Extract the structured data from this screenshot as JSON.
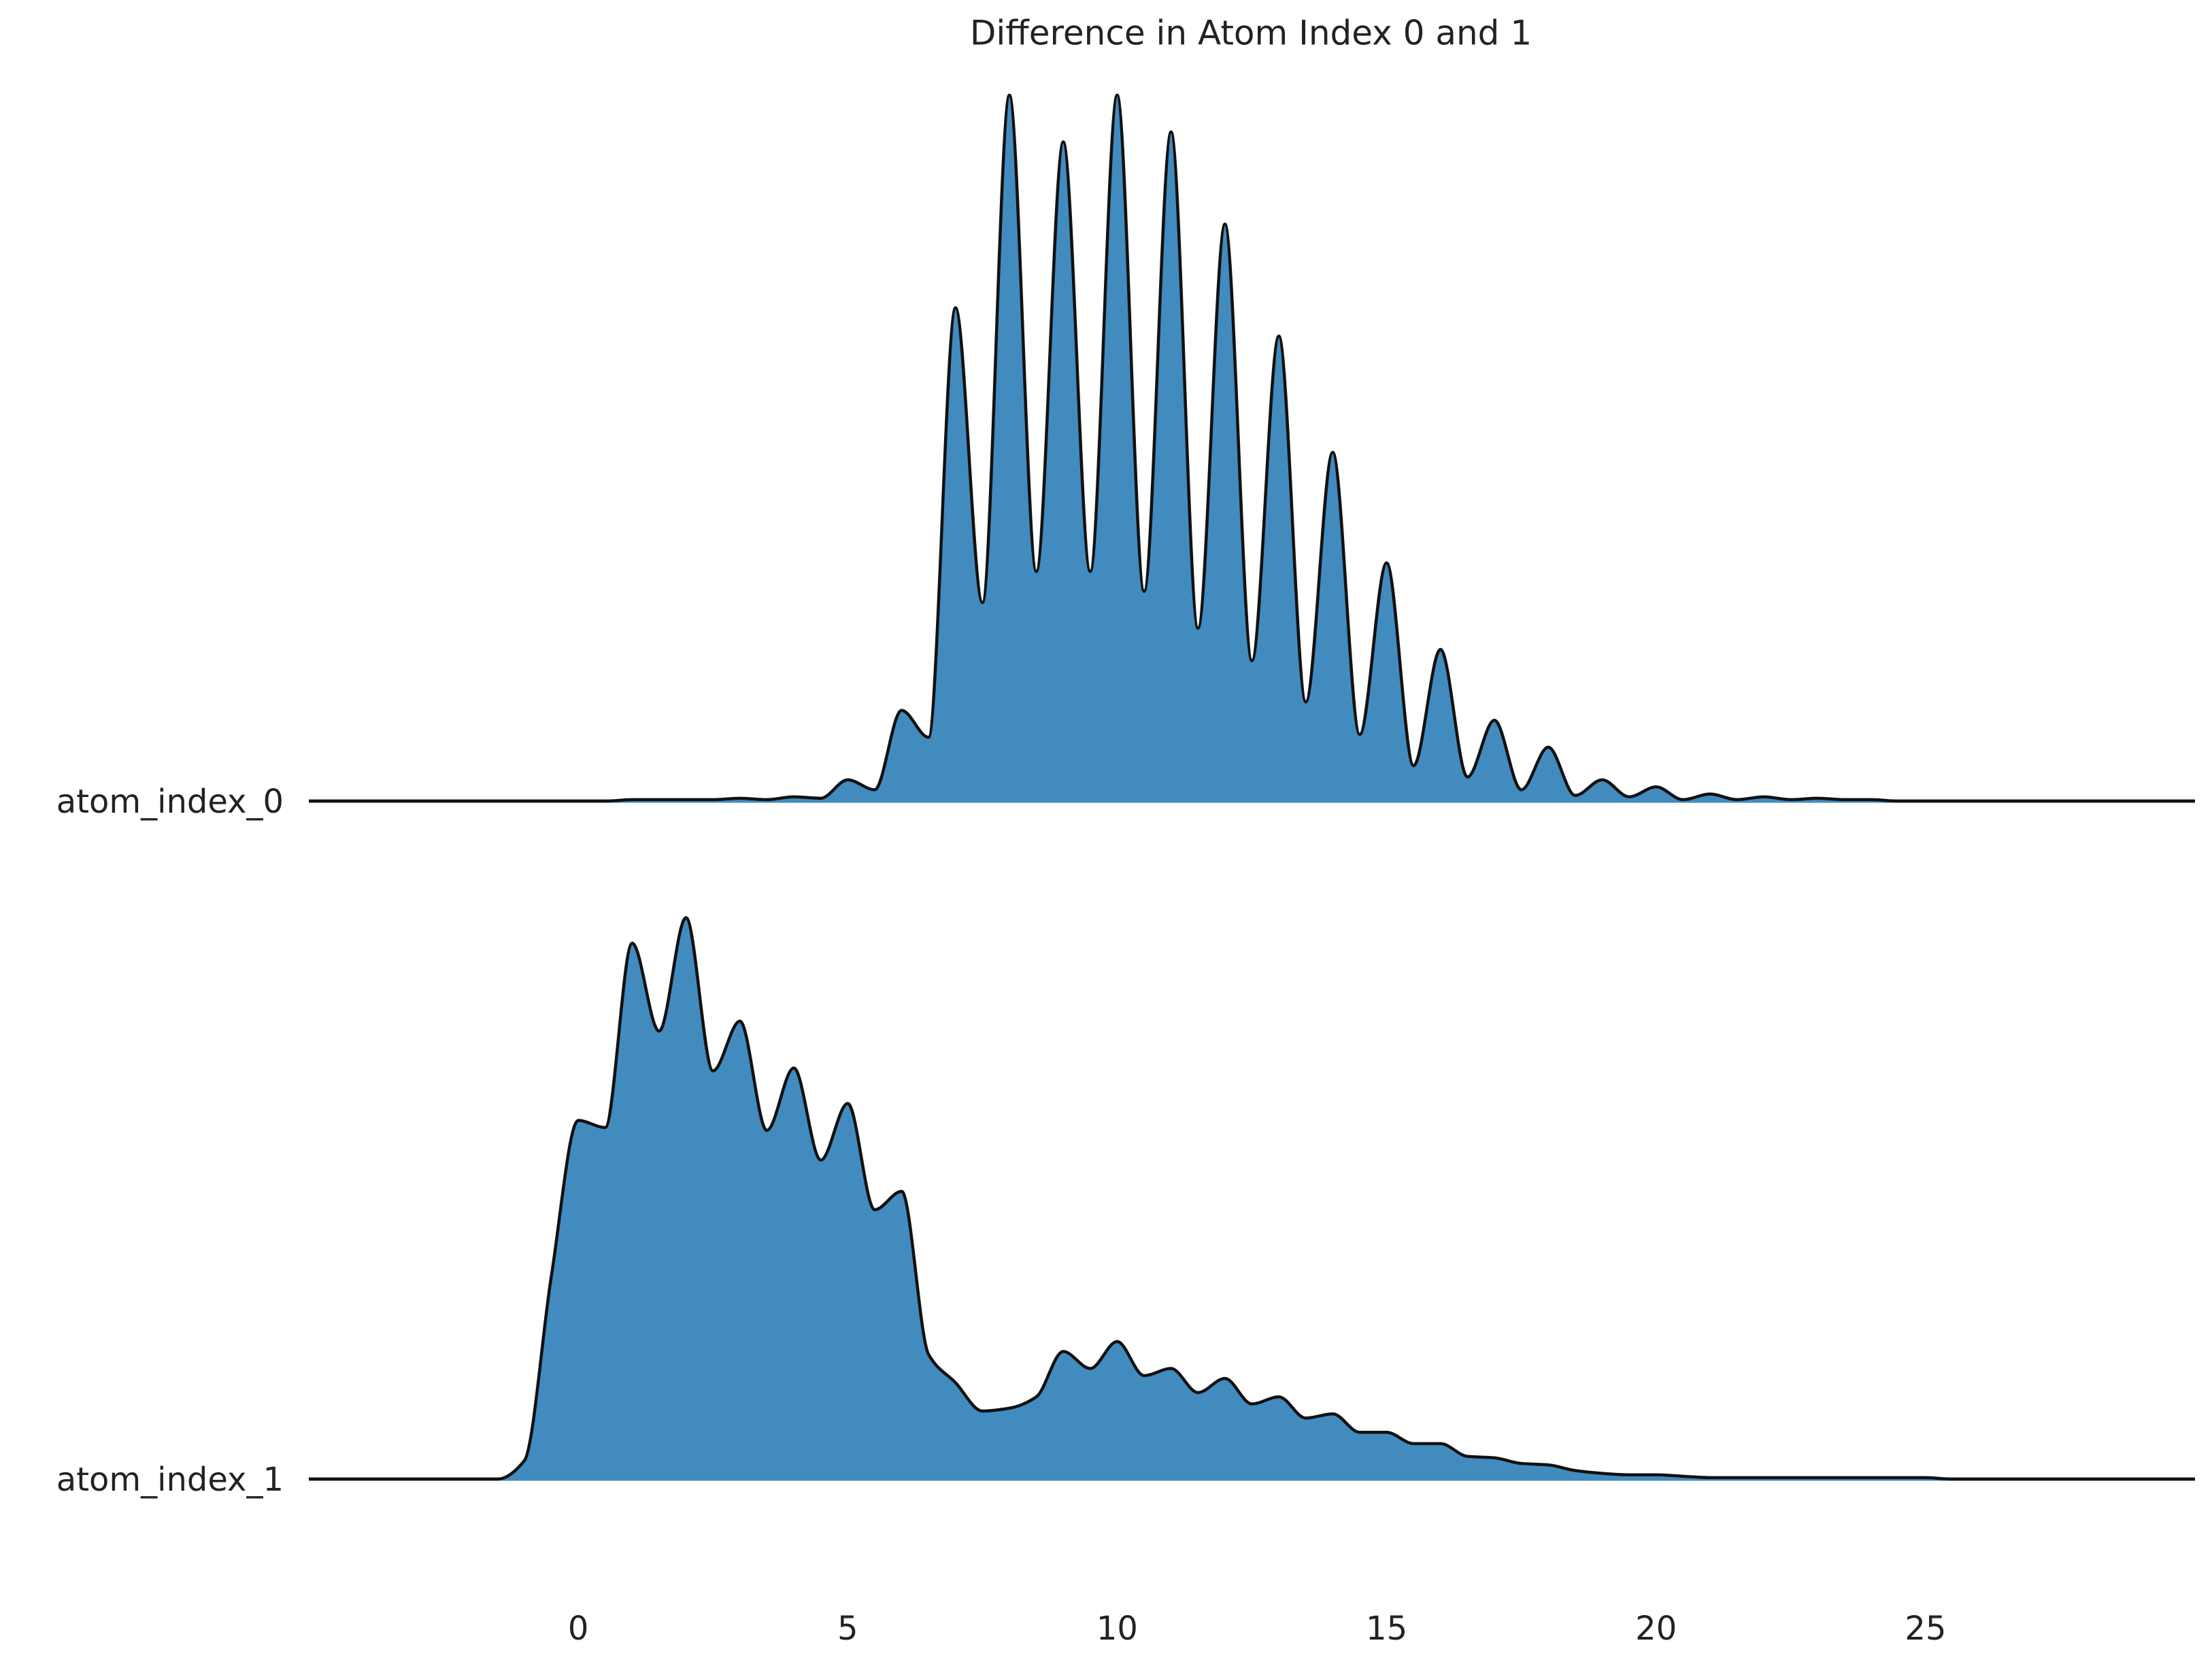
{
  "chart_data": {
    "type": "ridgeline",
    "title": "Difference in Atom Index 0 and 1",
    "x": [
      -5,
      -4.5,
      -4,
      -3.5,
      -3,
      -2.5,
      -2,
      -1.5,
      -1,
      -0.5,
      0,
      0.5,
      1,
      1.5,
      2,
      2.5,
      3,
      3.5,
      4,
      4.5,
      5,
      5.5,
      6,
      6.5,
      7,
      7.5,
      8,
      8.5,
      9,
      9.5,
      10,
      10.5,
      11,
      11.5,
      12,
      12.5,
      13,
      13.5,
      14,
      14.5,
      15,
      15.5,
      16,
      16.5,
      17,
      17.5,
      18,
      18.5,
      19,
      19.5,
      20,
      20.5,
      21,
      21.5,
      22,
      22.5,
      23,
      23.5,
      24,
      24.5,
      25,
      25.5,
      26,
      26.5,
      27,
      27.5,
      28,
      28.5,
      29,
      29.5,
      30
    ],
    "series": [
      {
        "name": "atom_index_0",
        "color": "#428bbf",
        "values": [
          0,
          0,
          0,
          0,
          0,
          0,
          0,
          0,
          0,
          0,
          0,
          0,
          0.0005,
          0.0005,
          0.0005,
          0.0005,
          0.001,
          0.0005,
          0.0015,
          0.001,
          0.0075,
          0.004,
          0.032,
          0.0225,
          0.174,
          0.07,
          0.249,
          0.081,
          0.2325,
          0.081,
          0.249,
          0.074,
          0.236,
          0.061,
          0.2035,
          0.0495,
          0.164,
          0.035,
          0.123,
          0.0235,
          0.084,
          0.0125,
          0.0535,
          0.0085,
          0.0285,
          0.004,
          0.019,
          0.002,
          0.0075,
          0.0015,
          0.005,
          0.0005,
          0.0025,
          0.0005,
          0.0015,
          0.0005,
          0.001,
          0.0005,
          0.0005,
          0,
          0,
          0,
          0,
          0,
          0,
          0,
          0,
          0,
          0,
          0,
          0
        ]
      },
      {
        "name": "atom_index_1",
        "color": "#428bbf",
        "values": [
          0,
          0,
          0,
          0,
          0,
          0,
          0,
          0,
          0.0065,
          0.0715,
          0.1265,
          0.124,
          0.189,
          0.158,
          0.198,
          0.144,
          0.1615,
          0.123,
          0.145,
          0.1125,
          0.1325,
          0.095,
          0.1015,
          0.044,
          0.034,
          0.024,
          0.025,
          0.029,
          0.045,
          0.039,
          0.0485,
          0.0365,
          0.039,
          0.0305,
          0.0355,
          0.0265,
          0.029,
          0.0215,
          0.023,
          0.0165,
          0.0165,
          0.0125,
          0.0125,
          0.008,
          0.0075,
          0.0055,
          0.005,
          0.003,
          0.002,
          0.0015,
          0.0015,
          0.001,
          0.0005,
          0.0005,
          0.0005,
          0.0005,
          0.0005,
          0.0005,
          0.0005,
          0.0005,
          0.0005,
          0,
          0,
          0,
          0,
          0,
          0,
          0,
          0,
          0,
          0
        ]
      }
    ],
    "xlim": [
      -5,
      30
    ],
    "xticks": [
      0,
      5,
      10,
      15,
      20,
      25
    ],
    "ylim": [
      0,
      0.26
    ]
  }
}
